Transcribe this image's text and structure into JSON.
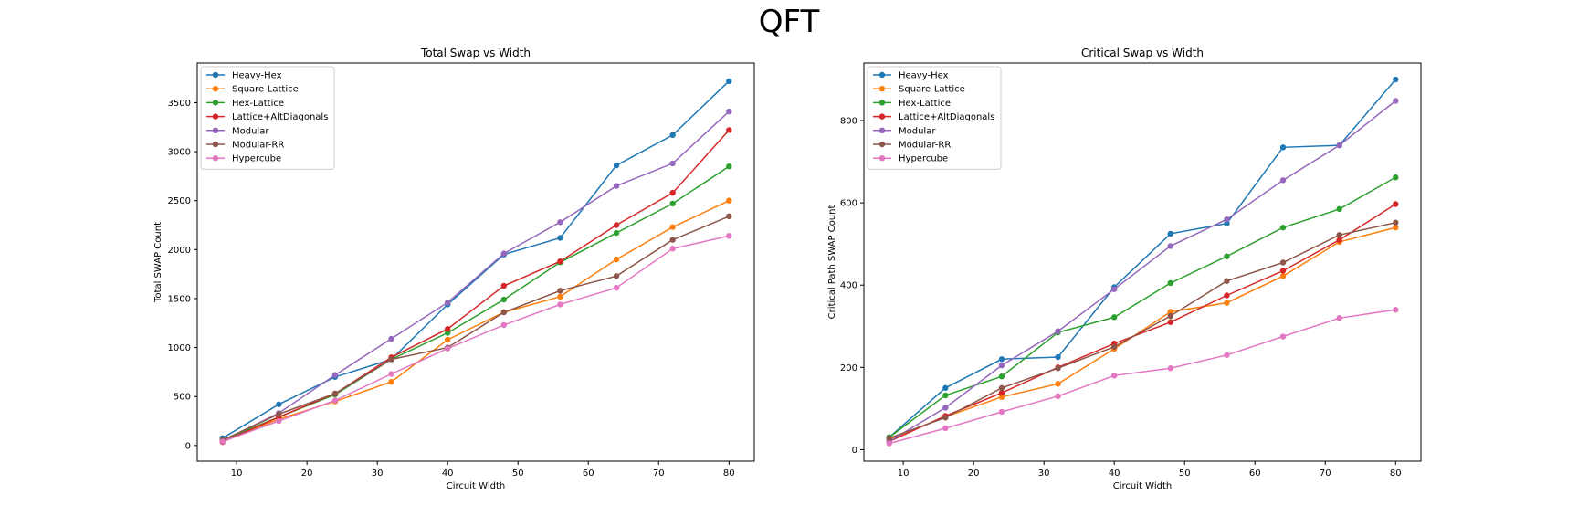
{
  "figure": {
    "title": "QFT"
  },
  "chart_data": [
    {
      "type": "line",
      "title": "Total Swap vs Width",
      "xlabel": "Circuit Width",
      "ylabel": "Total SWAP Count",
      "xlim": [
        4.4,
        83.6
      ],
      "ylim": [
        -160,
        3905
      ],
      "xticks": [
        10,
        20,
        30,
        40,
        50,
        60,
        70,
        80
      ],
      "yticks": [
        0,
        500,
        1000,
        1500,
        2000,
        2500,
        3000,
        3500
      ],
      "grid": false,
      "legend": "top-left",
      "x": [
        8,
        16,
        24,
        32,
        40,
        48,
        56,
        64,
        72,
        80
      ],
      "series": [
        {
          "name": "Heavy-Hex",
          "color": "#1f77b4",
          "values": [
            75,
            420,
            700,
            880,
            1440,
            1950,
            2120,
            2860,
            3170,
            3720
          ]
        },
        {
          "name": "Square-Lattice",
          "color": "#ff7f0e",
          "values": [
            45,
            270,
            450,
            650,
            1080,
            1360,
            1520,
            1900,
            2230,
            2500
          ]
        },
        {
          "name": "Hex-Lattice",
          "color": "#2ca02c",
          "values": [
            55,
            290,
            520,
            880,
            1150,
            1490,
            1870,
            2170,
            2470,
            2850
          ]
        },
        {
          "name": "Lattice+AltDiagonals",
          "color": "#d62728",
          "values": [
            35,
            290,
            530,
            900,
            1190,
            1630,
            1880,
            2250,
            2580,
            3220
          ]
        },
        {
          "name": "Modular",
          "color": "#9467bd",
          "values": [
            50,
            330,
            720,
            1090,
            1460,
            1960,
            2280,
            2650,
            2880,
            3410
          ]
        },
        {
          "name": "Modular-RR",
          "color": "#8c564b",
          "values": [
            55,
            320,
            530,
            880,
            1000,
            1360,
            1580,
            1730,
            2100,
            2340
          ]
        },
        {
          "name": "Hypercube",
          "color": "#e377c2",
          "values": [
            40,
            250,
            460,
            730,
            990,
            1230,
            1440,
            1610,
            2010,
            2140
          ]
        }
      ]
    },
    {
      "type": "line",
      "title": "Critical Swap vs Width",
      "xlabel": "Circuit Width",
      "ylabel": "Critical Path SWAP Count",
      "xlim": [
        4.4,
        83.6
      ],
      "ylim": [
        -28,
        940
      ],
      "xticks": [
        10,
        20,
        30,
        40,
        50,
        60,
        70,
        80
      ],
      "yticks": [
        0,
        200,
        400,
        600,
        800
      ],
      "grid": false,
      "legend": "top-left",
      "x": [
        8,
        16,
        24,
        32,
        40,
        48,
        56,
        64,
        72,
        80
      ],
      "series": [
        {
          "name": "Heavy-Hex",
          "color": "#1f77b4",
          "values": [
            30,
            150,
            220,
            225,
            395,
            525,
            550,
            735,
            740,
            900
          ]
        },
        {
          "name": "Square-Lattice",
          "color": "#ff7f0e",
          "values": [
            25,
            80,
            128,
            160,
            245,
            335,
            357,
            422,
            505,
            540
          ]
        },
        {
          "name": "Hex-Lattice",
          "color": "#2ca02c",
          "values": [
            30,
            132,
            178,
            285,
            322,
            405,
            470,
            540,
            585,
            662
          ]
        },
        {
          "name": "Lattice+AltDiagonals",
          "color": "#d62728",
          "values": [
            20,
            82,
            138,
            200,
            258,
            310,
            375,
            435,
            510,
            597
          ]
        },
        {
          "name": "Modular",
          "color": "#9467bd",
          "values": [
            20,
            102,
            205,
            288,
            390,
            495,
            560,
            655,
            740,
            848
          ]
        },
        {
          "name": "Modular-RR",
          "color": "#8c564b",
          "values": [
            28,
            78,
            150,
            198,
            250,
            325,
            410,
            455,
            522,
            552
          ]
        },
        {
          "name": "Hypercube",
          "color": "#e377c2",
          "values": [
            15,
            52,
            92,
            130,
            180,
            198,
            230,
            275,
            320,
            340
          ]
        }
      ]
    }
  ]
}
